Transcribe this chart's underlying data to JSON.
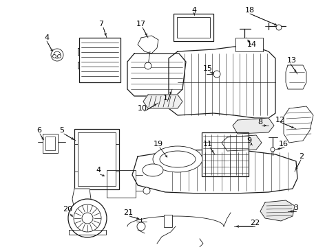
{
  "background_color": "#ffffff",
  "fig_width": 4.89,
  "fig_height": 3.6,
  "dpi": 100,
  "line_color": "#1a1a1a",
  "text_color": "#000000",
  "font_size": 7.5
}
